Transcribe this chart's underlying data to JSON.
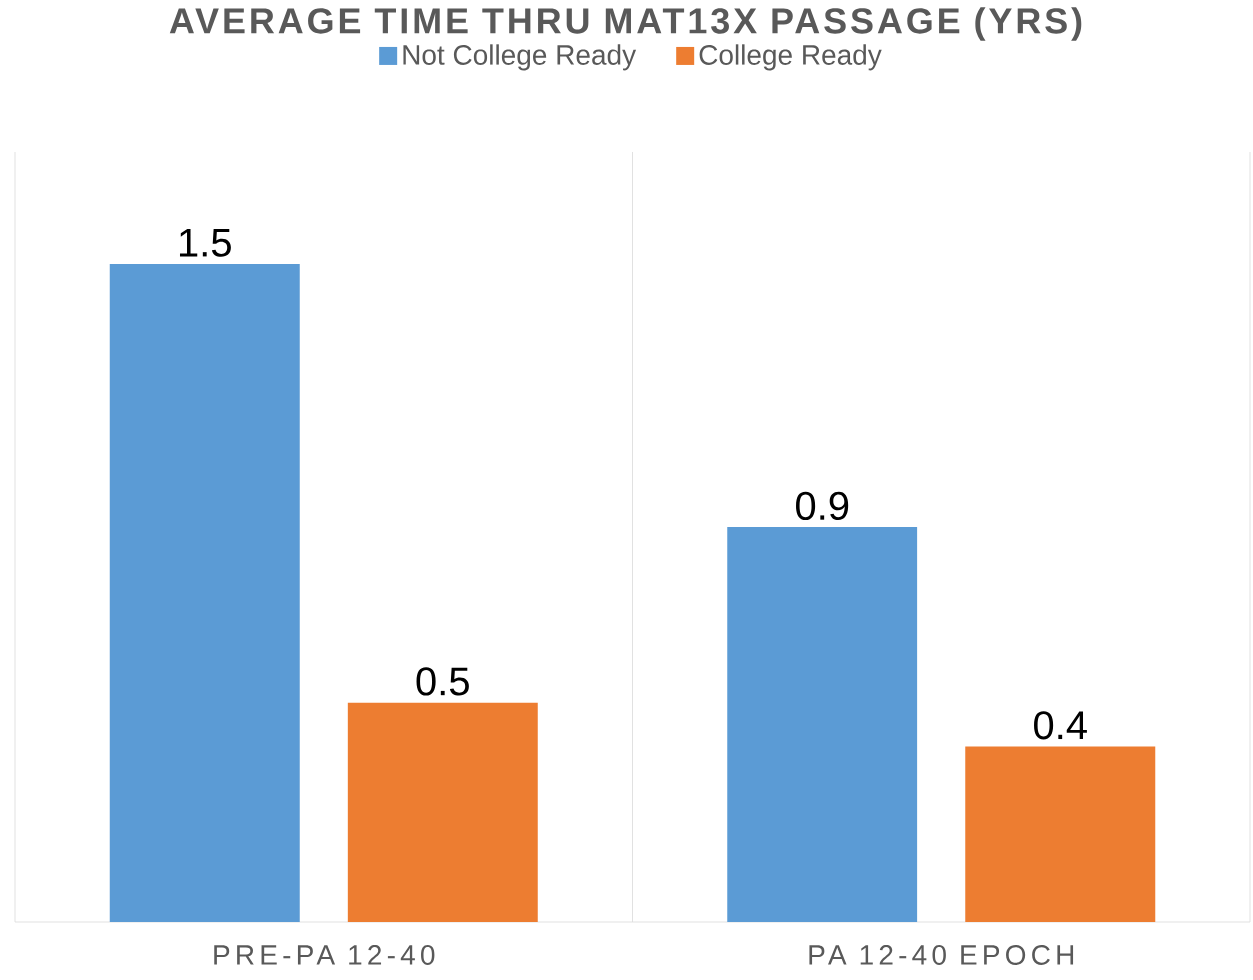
{
  "chart_data": {
    "type": "bar",
    "title": "AVERAGE TIME THRU MAT13X PASSAGE (YRS)",
    "categories": [
      "PRE-PA 12-40",
      "PA 12-40 EPOCH"
    ],
    "series": [
      {
        "name": "Not College Ready",
        "color": "#5b9bd5",
        "values": [
          1.5,
          0.9
        ]
      },
      {
        "name": "College Ready",
        "color": "#ed7d31",
        "values": [
          0.5,
          0.4
        ]
      }
    ],
    "data_labels": true,
    "grid": "x",
    "legend": "top"
  }
}
